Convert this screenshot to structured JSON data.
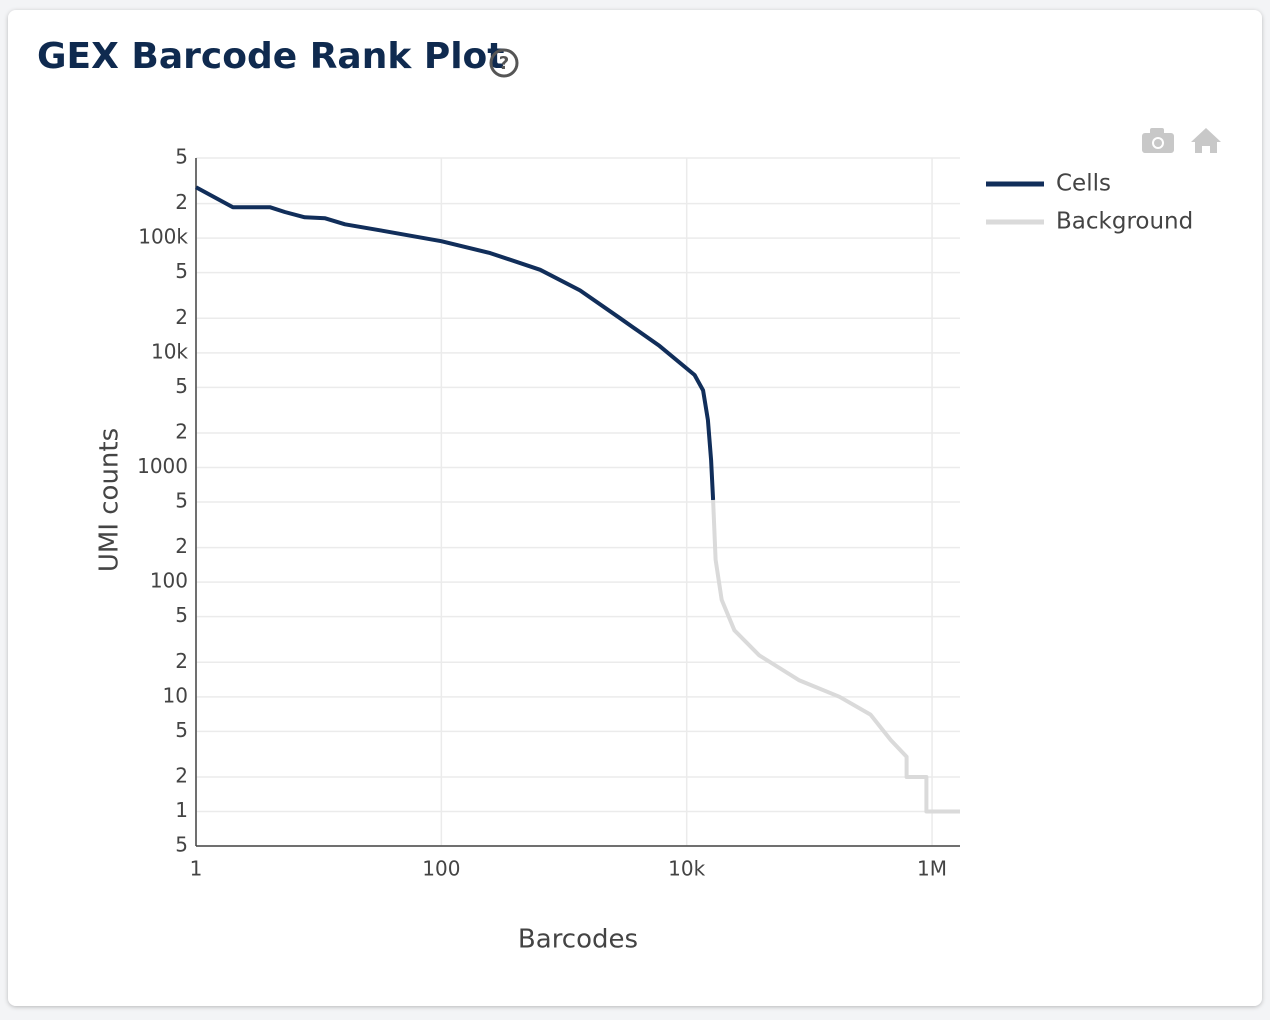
{
  "chart_data": {
    "type": "line",
    "title": "GEX Barcode Rank Plot",
    "x_label": "Barcodes",
    "y_label": "UMI counts",
    "x_scale": "log",
    "y_scale": "log",
    "grid": true,
    "legend": "right",
    "xlim": [
      1,
      1690000
    ],
    "ylim": [
      0.5,
      500000
    ],
    "xticks": [
      1,
      100,
      {
        "value": 10000,
        "label": "10k"
      },
      {
        "value": 1000000,
        "label": "1M"
      }
    ],
    "yticks": [
      {
        "value": 0.5,
        "label": "5"
      },
      1,
      {
        "value": 2,
        "label": "2"
      },
      5,
      10,
      {
        "value": 20,
        "label": "2"
      },
      {
        "value": 50,
        "label": "5"
      },
      100,
      {
        "value": 200,
        "label": "2"
      },
      {
        "value": 500,
        "label": "5"
      },
      1000,
      {
        "value": 2000,
        "label": "2"
      },
      {
        "value": 5000,
        "label": "5"
      },
      {
        "value": 10000,
        "label": "10k"
      },
      {
        "value": 20000,
        "label": "2"
      },
      {
        "value": 50000,
        "label": "5"
      },
      {
        "value": 100000,
        "label": "100k"
      },
      {
        "value": 200000,
        "label": "2"
      },
      {
        "value": 500000,
        "label": "5"
      }
    ],
    "series": [
      {
        "name": "Cells",
        "color": "#112e5a",
        "x": [
          1,
          2,
          4,
          5.3,
          7.7,
          11.3,
          16.4,
          31.6,
          100,
          250,
          640,
          1350,
          2870,
          6000,
          11600,
          13600,
          14900,
          15800,
          16400
        ],
        "values": [
          278000,
          186000,
          186000,
          169000,
          152000,
          149000,
          132000,
          117000,
          94000,
          74000,
          53000,
          35000,
          20000,
          11500,
          6400,
          4700,
          2600,
          1160,
          520
        ]
      },
      {
        "name": "Background",
        "color": "#dadada",
        "x": [
          16400,
          17200,
          19300,
          24500,
          39000,
          82000,
          176000,
          315000,
          460000,
          620000,
          620000,
          900000,
          900000,
          1690000
        ],
        "values": [
          520,
          157,
          70,
          38,
          23,
          14,
          10,
          7,
          4.2,
          3,
          2,
          2,
          1,
          1
        ]
      }
    ]
  }
}
